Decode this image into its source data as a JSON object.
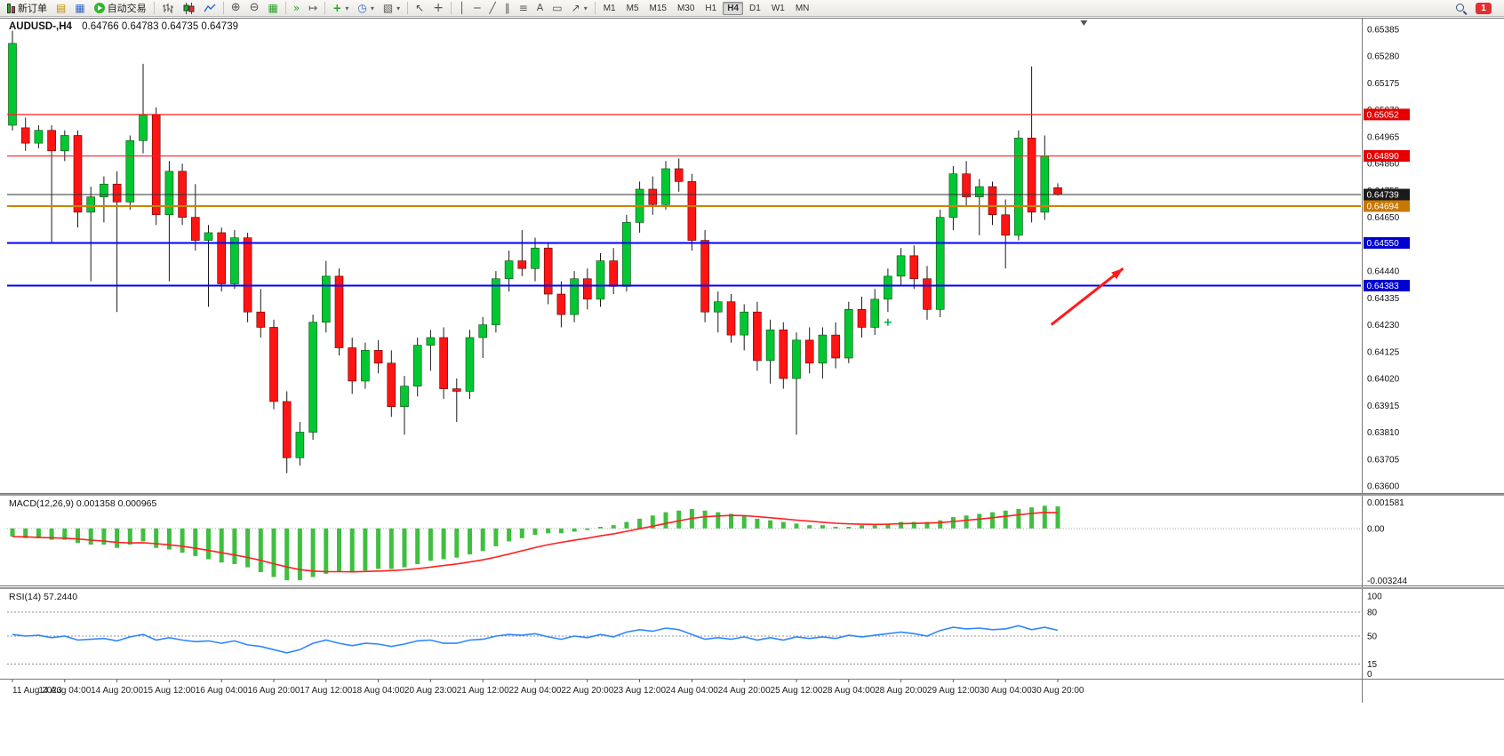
{
  "toolbar": {
    "new_order_label": "新订单",
    "auto_trading_label": "自动交易",
    "timeframes": [
      "M1",
      "M5",
      "M15",
      "M30",
      "H1",
      "H4",
      "D1",
      "W1",
      "MN"
    ],
    "active_timeframe": "H4",
    "notification_count": "1"
  },
  "icons": {
    "chart_profiles": "▤",
    "charts": "▦",
    "zoom_in": "⊕",
    "zoom_out": "⊖",
    "tile_windows": "▦",
    "auto_scroll": "»",
    "chart_shift": "↦",
    "indicators_plus": "+",
    "clock": "◷",
    "template": "▧",
    "dropdown": "▾",
    "cursor": "↖",
    "crosshair": "+",
    "vline": "│",
    "hline": "─",
    "trendline": "╱",
    "channel": "∥",
    "fibo": "≡",
    "text_tool": "A",
    "label_tool": "▭",
    "arrows_tool": "↗"
  },
  "chart": {
    "title_symbol": "AUDUSD-,H4",
    "title_ohlc": "0.64766 0.64783 0.64735 0.64739"
  },
  "colors": {
    "bull": "#00c832",
    "bull_border": "#0a4a0a",
    "bear": "#ff1414",
    "bear_border": "#5a0000",
    "wick": "#1a1a1a",
    "background": "#ffffff",
    "panel_border": "#787878"
  },
  "chart_data": {
    "type": "candlestick",
    "symbol": "AUDUSD-",
    "timeframe": "H4",
    "price_axis": {
      "min": 0.636,
      "max": 0.65385,
      "tick_labels": [
        "0.65385",
        "0.65280",
        "0.65175",
        "0.65070",
        "0.64965",
        "0.64860",
        "0.64755",
        "0.64650",
        "0.64545",
        "0.64440",
        "0.64335",
        "0.64230",
        "0.64125",
        "0.64020",
        "0.63915",
        "0.63810",
        "0.63705",
        "0.63600"
      ]
    },
    "time_labels": [
      "11 Aug 2023",
      "14 Aug 04:00",
      "14 Aug 20:00",
      "15 Aug 12:00",
      "16 Aug 04:00",
      "16 Aug 20:00",
      "17 Aug 12:00",
      "18 Aug 04:00",
      "20 Aug 23:00",
      "21 Aug 12:00",
      "22 Aug 04:00",
      "22 Aug 20:00",
      "23 Aug 12:00",
      "24 Aug 04:00",
      "24 Aug 20:00",
      "25 Aug 12:00",
      "28 Aug 04:00",
      "28 Aug 20:00",
      "29 Aug 12:00",
      "30 Aug 04:00",
      "30 Aug 20:00"
    ],
    "label_every_n_candles": 4,
    "candles": [
      [
        0.6501,
        0.6538,
        0.6499,
        0.6533
      ],
      [
        0.65,
        0.6504,
        0.6491,
        0.6494
      ],
      [
        0.6494,
        0.6501,
        0.6492,
        0.6499
      ],
      [
        0.6499,
        0.6501,
        0.6455,
        0.6491
      ],
      [
        0.6491,
        0.6499,
        0.6487,
        0.6497
      ],
      [
        0.6497,
        0.6499,
        0.6461,
        0.6467
      ],
      [
        0.6467,
        0.6477,
        0.644,
        0.6473
      ],
      [
        0.6473,
        0.6481,
        0.6463,
        0.6478
      ],
      [
        0.6478,
        0.6483,
        0.6428,
        0.6471
      ],
      [
        0.6471,
        0.6497,
        0.6468,
        0.6495
      ],
      [
        0.6495,
        0.6525,
        0.649,
        0.6505
      ],
      [
        0.6505,
        0.6508,
        0.6462,
        0.6466
      ],
      [
        0.6466,
        0.6487,
        0.644,
        0.6483
      ],
      [
        0.6483,
        0.6486,
        0.6462,
        0.6465
      ],
      [
        0.6465,
        0.6478,
        0.6452,
        0.6456
      ],
      [
        0.6456,
        0.6462,
        0.643,
        0.6459
      ],
      [
        0.6459,
        0.6461,
        0.6436,
        0.6439
      ],
      [
        0.6439,
        0.646,
        0.6437,
        0.6457
      ],
      [
        0.6457,
        0.6459,
        0.6424,
        0.6428
      ],
      [
        0.6428,
        0.6437,
        0.6418,
        0.6422
      ],
      [
        0.6422,
        0.6425,
        0.639,
        0.6393
      ],
      [
        0.6393,
        0.6397,
        0.6365,
        0.6371
      ],
      [
        0.6371,
        0.6385,
        0.6368,
        0.6381
      ],
      [
        0.6381,
        0.6427,
        0.6378,
        0.6424
      ],
      [
        0.6424,
        0.6448,
        0.642,
        0.6442
      ],
      [
        0.6442,
        0.6445,
        0.6411,
        0.6414
      ],
      [
        0.6414,
        0.6418,
        0.6396,
        0.6401
      ],
      [
        0.6401,
        0.6416,
        0.6398,
        0.6413
      ],
      [
        0.6413,
        0.6417,
        0.6404,
        0.6408
      ],
      [
        0.6408,
        0.6413,
        0.6387,
        0.6391
      ],
      [
        0.6391,
        0.6403,
        0.638,
        0.6399
      ],
      [
        0.6399,
        0.6418,
        0.6395,
        0.6415
      ],
      [
        0.6415,
        0.6421,
        0.6405,
        0.6418
      ],
      [
        0.6418,
        0.6422,
        0.6394,
        0.6398
      ],
      [
        0.6398,
        0.6402,
        0.6385,
        0.6397
      ],
      [
        0.6397,
        0.6421,
        0.6394,
        0.6418
      ],
      [
        0.6418,
        0.6426,
        0.641,
        0.6423
      ],
      [
        0.6423,
        0.6444,
        0.642,
        0.6441
      ],
      [
        0.6441,
        0.6452,
        0.6436,
        0.6448
      ],
      [
        0.6448,
        0.646,
        0.6442,
        0.6445
      ],
      [
        0.6445,
        0.6457,
        0.644,
        0.6453
      ],
      [
        0.6453,
        0.6455,
        0.6431,
        0.6435
      ],
      [
        0.6435,
        0.644,
        0.6422,
        0.6427
      ],
      [
        0.6427,
        0.6444,
        0.6424,
        0.6441
      ],
      [
        0.6441,
        0.6445,
        0.6429,
        0.6433
      ],
      [
        0.6433,
        0.6451,
        0.643,
        0.6448
      ],
      [
        0.6448,
        0.6453,
        0.6435,
        0.6438
      ],
      [
        0.6438,
        0.6466,
        0.6436,
        0.6463
      ],
      [
        0.6463,
        0.6479,
        0.6459,
        0.6476
      ],
      [
        0.6476,
        0.6481,
        0.6466,
        0.647
      ],
      [
        0.647,
        0.6487,
        0.6468,
        0.6484
      ],
      [
        0.6484,
        0.6488,
        0.6475,
        0.6479
      ],
      [
        0.6479,
        0.6482,
        0.6452,
        0.6456
      ],
      [
        0.6456,
        0.646,
        0.6424,
        0.6428
      ],
      [
        0.6428,
        0.6436,
        0.642,
        0.6432
      ],
      [
        0.6432,
        0.6435,
        0.6416,
        0.6419
      ],
      [
        0.6419,
        0.6431,
        0.6413,
        0.6428
      ],
      [
        0.6428,
        0.6432,
        0.6405,
        0.6409
      ],
      [
        0.6409,
        0.6425,
        0.64,
        0.6421
      ],
      [
        0.6421,
        0.6424,
        0.6398,
        0.6402
      ],
      [
        0.6402,
        0.642,
        0.638,
        0.6417
      ],
      [
        0.6417,
        0.6422,
        0.6404,
        0.6408
      ],
      [
        0.6408,
        0.6422,
        0.6402,
        0.6419
      ],
      [
        0.6419,
        0.6424,
        0.6406,
        0.641
      ],
      [
        0.641,
        0.6432,
        0.6408,
        0.6429
      ],
      [
        0.6429,
        0.6434,
        0.6418,
        0.6422
      ],
      [
        0.6422,
        0.6437,
        0.6419,
        0.6433
      ],
      [
        0.6433,
        0.6445,
        0.6428,
        0.6442
      ],
      [
        0.6442,
        0.6453,
        0.6438,
        0.645
      ],
      [
        0.645,
        0.6454,
        0.6437,
        0.6441
      ],
      [
        0.6441,
        0.6446,
        0.6425,
        0.6429
      ],
      [
        0.6429,
        0.6468,
        0.6426,
        0.6465
      ],
      [
        0.6465,
        0.6485,
        0.646,
        0.6482
      ],
      [
        0.6482,
        0.6487,
        0.6469,
        0.6473
      ],
      [
        0.6473,
        0.648,
        0.6458,
        0.6477
      ],
      [
        0.6477,
        0.6479,
        0.6462,
        0.6466
      ],
      [
        0.6466,
        0.6472,
        0.6445,
        0.6458
      ],
      [
        0.6458,
        0.6499,
        0.6456,
        0.6496
      ],
      [
        0.6496,
        0.6524,
        0.6463,
        0.6467
      ],
      [
        0.6467,
        0.6497,
        0.6464,
        0.6489
      ],
      [
        0.64766,
        0.64783,
        0.64735,
        0.64739
      ]
    ],
    "levels": [
      {
        "name": "resistance-1",
        "price": 0.65052,
        "label": "0.65052",
        "badge_color": "#e60000",
        "line_color": "#ff2020",
        "width": 1.2
      },
      {
        "name": "resistance-2",
        "price": 0.6489,
        "label": "0.64890",
        "badge_color": "#e60000",
        "line_color": "#ff2020",
        "width": 1.2
      },
      {
        "name": "current-price",
        "price": 0.64739,
        "label": "0.64739",
        "badge_color": "#1a1a1a",
        "line_color": "#303030",
        "width": 1
      },
      {
        "name": "pivot-line",
        "price": 0.64694,
        "label": "0.64694",
        "badge_color": "#c87800",
        "line_color": "#cc8400",
        "width": 2
      },
      {
        "name": "support-1",
        "price": 0.6455,
        "label": "0.64550",
        "badge_color": "#0000d0",
        "line_color": "#0000ff",
        "width": 2
      },
      {
        "name": "support-2",
        "price": 0.64383,
        "label": "0.64383",
        "badge_color": "#0000d0",
        "line_color": "#0000ff",
        "width": 2
      }
    ],
    "arrow_annotation": {
      "from_index": 79.5,
      "from_price": 0.6423,
      "to_index": 85,
      "to_price": 0.6445,
      "color": "#ff1a1a"
    },
    "cross_marker": {
      "index": 67,
      "price": 0.6424,
      "color": "#00b050"
    },
    "shift_marker_index": 82,
    "macd": {
      "label": "MACD(12,26,9) 0.001358 0.000965",
      "max": 0.001581,
      "min": -0.003244,
      "axis_labels": [
        "0.001581",
        "0.00",
        "-0.003244"
      ],
      "histogram_color": "#3fbf3f",
      "signal_color": "#ff2020",
      "histogram": [
        -0.0005,
        -0.0006,
        -0.0006,
        -0.0007,
        -0.0007,
        -0.0009,
        -0.001,
        -0.001,
        -0.0012,
        -0.001,
        -0.0008,
        -0.0012,
        -0.0013,
        -0.0015,
        -0.0017,
        -0.0019,
        -0.0021,
        -0.0022,
        -0.0024,
        -0.0027,
        -0.003,
        -0.0032,
        -0.0032,
        -0.003,
        -0.0028,
        -0.0027,
        -0.0027,
        -0.0026,
        -0.0025,
        -0.0025,
        -0.0024,
        -0.0022,
        -0.002,
        -0.0019,
        -0.0018,
        -0.0016,
        -0.0014,
        -0.0011,
        -0.0008,
        -0.0006,
        -0.0004,
        -0.0003,
        -0.0003,
        -0.0002,
        -0.0001,
        0.0001,
        0.0002,
        0.0004,
        0.0006,
        0.0008,
        0.001,
        0.0011,
        0.0012,
        0.0011,
        0.001,
        0.0009,
        0.0008,
        0.0006,
        0.0005,
        0.0004,
        0.0003,
        0.0002,
        0.0002,
        0.0001,
        0.0001,
        0.0002,
        0.0002,
        0.0003,
        0.0004,
        0.0004,
        0.0004,
        0.0005,
        0.0007,
        0.0008,
        0.0009,
        0.001,
        0.0011,
        0.0012,
        0.0013,
        0.0014,
        0.001358
      ],
      "signal": [
        -0.0005,
        -0.00052,
        -0.00055,
        -0.00058,
        -0.0006,
        -0.00065,
        -0.00072,
        -0.00078,
        -0.00086,
        -0.0009,
        -0.00088,
        -0.00094,
        -0.00101,
        -0.0011,
        -0.00122,
        -0.00136,
        -0.0015,
        -0.00164,
        -0.00179,
        -0.00197,
        -0.00218,
        -0.00238,
        -0.00254,
        -0.00263,
        -0.00267,
        -0.00267,
        -0.00268,
        -0.00266,
        -0.00263,
        -0.0026,
        -0.00256,
        -0.00249,
        -0.00239,
        -0.00229,
        -0.00219,
        -0.00207,
        -0.00194,
        -0.00177,
        -0.00158,
        -0.00138,
        -0.00118,
        -0.001,
        -0.00086,
        -0.00073,
        -0.0006,
        -0.00046,
        -0.00033,
        -0.00018,
        -2e-05,
        0.00014,
        0.00031,
        0.00047,
        0.00062,
        0.00072,
        0.00077,
        0.0008,
        0.00079,
        0.00073,
        0.00066,
        0.00059,
        0.00051,
        0.00045,
        0.00038,
        0.00032,
        0.00028,
        0.00026,
        0.00025,
        0.00026,
        0.00029,
        0.00031,
        0.00033,
        0.00036,
        0.00043,
        0.0005,
        0.00058,
        0.00066,
        0.00075,
        0.00084,
        0.00093,
        0.00099,
        0.000965
      ]
    },
    "rsi": {
      "label": "RSI(14) 57.2440",
      "line_color": "#2e86ff",
      "levels": [
        80,
        50,
        15
      ],
      "axis_labels": [
        "100",
        "80",
        "50",
        "15",
        "0"
      ],
      "values": [
        52,
        50,
        51,
        48,
        50,
        45,
        46,
        47,
        44,
        49,
        52,
        45,
        48,
        45,
        43,
        44,
        41,
        44,
        39,
        37,
        33,
        29,
        33,
        41,
        45,
        41,
        38,
        41,
        40,
        37,
        40,
        44,
        45,
        41,
        41,
        45,
        46,
        50,
        52,
        51,
        53,
        49,
        46,
        50,
        48,
        52,
        49,
        55,
        58,
        56,
        60,
        58,
        52,
        46,
        48,
        46,
        49,
        45,
        48,
        45,
        49,
        47,
        49,
        47,
        51,
        49,
        51,
        53,
        55,
        53,
        50,
        57,
        61,
        59,
        60,
        58,
        59,
        63,
        58,
        61,
        57.244
      ]
    }
  }
}
